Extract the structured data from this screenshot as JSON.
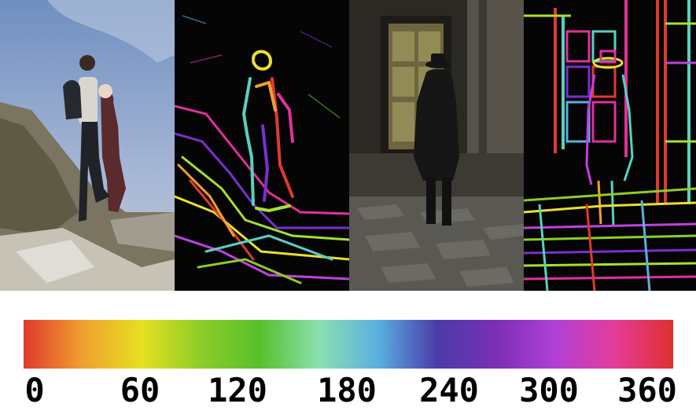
{
  "panels": [
    {
      "name": "climbers-photo",
      "kind": "photo"
    },
    {
      "name": "climbers-orientation-map",
      "kind": "edge-orientation-map"
    },
    {
      "name": "street-man-photo",
      "kind": "photo"
    },
    {
      "name": "street-man-orientation-map",
      "kind": "edge-orientation-map"
    }
  ],
  "colorbar": {
    "stops": [
      "#e03a2c",
      "#f0a030",
      "#e6e020",
      "#8ccd28",
      "#58c02a",
      "#8be0b0",
      "#5ab0e0",
      "#4a3ca8",
      "#7a2fb4",
      "#b040d8",
      "#e43c9a",
      "#e0302c"
    ],
    "tick_labels": [
      "0",
      "60",
      "120",
      "180",
      "240",
      "300",
      "360"
    ]
  }
}
